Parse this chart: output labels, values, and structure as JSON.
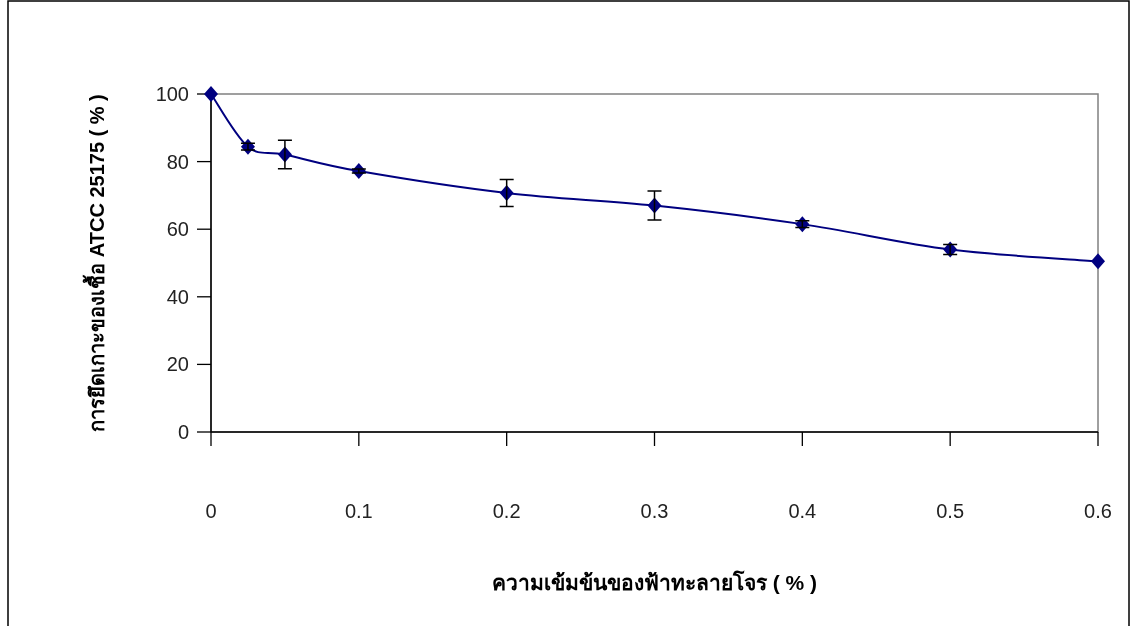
{
  "chart_data": {
    "type": "line",
    "xlabel": "ความเข้มข้นของฟ้าทะลายโจร ( % )",
    "ylabel": "การยึดเกาะของเชื้อ ATCC 25175 ( % )",
    "x": [
      0,
      0.025,
      0.05,
      0.1,
      0.2,
      0.3,
      0.4,
      0.5,
      0.6
    ],
    "series": [
      {
        "color": "#000080",
        "values": [
          100,
          84.4,
          82.1,
          77.2,
          70.7,
          67,
          61.5,
          54,
          50.5
        ],
        "errors": [
          null,
          1,
          4.2,
          0.6,
          4,
          4.3,
          1,
          1.5,
          null
        ]
      }
    ],
    "marker": "diamond",
    "xlim": [
      0,
      0.6
    ],
    "xticks": [
      0,
      0.1,
      0.2,
      0.3,
      0.4,
      0.5,
      0.6
    ],
    "ylim": [
      0,
      100
    ],
    "yticks": [
      0,
      20,
      40,
      60,
      80,
      100
    ]
  }
}
